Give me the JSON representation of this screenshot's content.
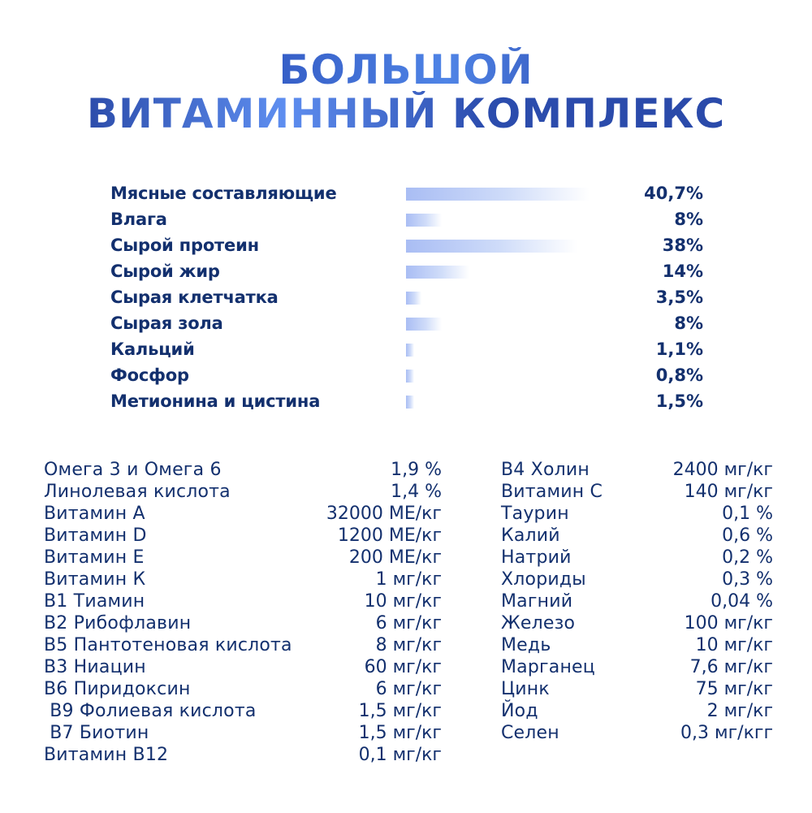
{
  "title": {
    "line1": "БОЛЬШОЙ",
    "line2": "ВИТАМИННЫЙ КОМПЛЕКС"
  },
  "composition": [
    {
      "name": "Мясные составляющие",
      "value": "40,7%",
      "percent": 40.7
    },
    {
      "name": "Влага",
      "value": "8%",
      "percent": 8
    },
    {
      "name": "Сырой протеин",
      "value": "38%",
      "percent": 38
    },
    {
      "name": "Сырой жир",
      "value": "14%",
      "percent": 14
    },
    {
      "name": "Сырая клетчатка",
      "value": "3,5%",
      "percent": 3.5
    },
    {
      "name": "Сырая зола",
      "value": "8%",
      "percent": 8
    },
    {
      "name": "Кальций",
      "value": "1,1%",
      "percent": 1.1
    },
    {
      "name": "Фосфор",
      "value": "0,8%",
      "percent": 0.8
    },
    {
      "name": "Метионина и цистина",
      "value": "1,5%",
      "percent": 1.5
    }
  ],
  "nutrients_left": [
    {
      "name": "Омега 3 и Омега 6",
      "value": "1,9 %"
    },
    {
      "name": "Линолевая кислота",
      "value": "1,4 %"
    },
    {
      "name": "Витамин А",
      "value": "32000 МЕ/кг"
    },
    {
      "name": "Витамин D",
      "value": "1200 МЕ/кг"
    },
    {
      "name": "Витамин Е",
      "value": "200 МЕ/кг"
    },
    {
      "name": "Витамин К",
      "value": "1 мг/кг"
    },
    {
      "name": "В1 Тиамин",
      "value": "10 мг/кг"
    },
    {
      "name": "В2 Рибофлавин",
      "value": "6 мг/кг"
    },
    {
      "name": "В5 Пантотеновая кислота",
      "value": "8 мг/кг"
    },
    {
      "name": "В3 Ниацин",
      "value": "60 мг/кг"
    },
    {
      "name": "В6 Пиридоксин",
      "value": "6 мг/кг"
    },
    {
      "name": " В9 Фолиевая кислота",
      "value": "1,5 мг/кг"
    },
    {
      "name": " В7 Биотин",
      "value": "1,5 мг/кг"
    },
    {
      "name": "Витамин В12",
      "value": "0,1 мг/кг"
    }
  ],
  "nutrients_right": [
    {
      "name": "В4 Холин",
      "value": "2400 мг/кг"
    },
    {
      "name": "Витамин С",
      "value": "140 мг/кг"
    },
    {
      "name": "Таурин",
      "value": "0,1 %"
    },
    {
      "name": "Калий",
      "value": "0,6 %"
    },
    {
      "name": "Натрий",
      "value": "0,2 %"
    },
    {
      "name": "Хлориды",
      "value": "0,3 %"
    },
    {
      "name": "Магний",
      "value": "0,04 %"
    },
    {
      "name": "Железо",
      "value": "100 мг/кг"
    },
    {
      "name": "Медь",
      "value": "10 мг/кг"
    },
    {
      "name": "Марганец",
      "value": "7,6 мг/кг"
    },
    {
      "name": "Цинк",
      "value": "75 мг/кг"
    },
    {
      "name": "Йод",
      "value": "2 мг/кг"
    },
    {
      "name": "Селен",
      "value": "0,3 мг/кгг"
    }
  ]
}
